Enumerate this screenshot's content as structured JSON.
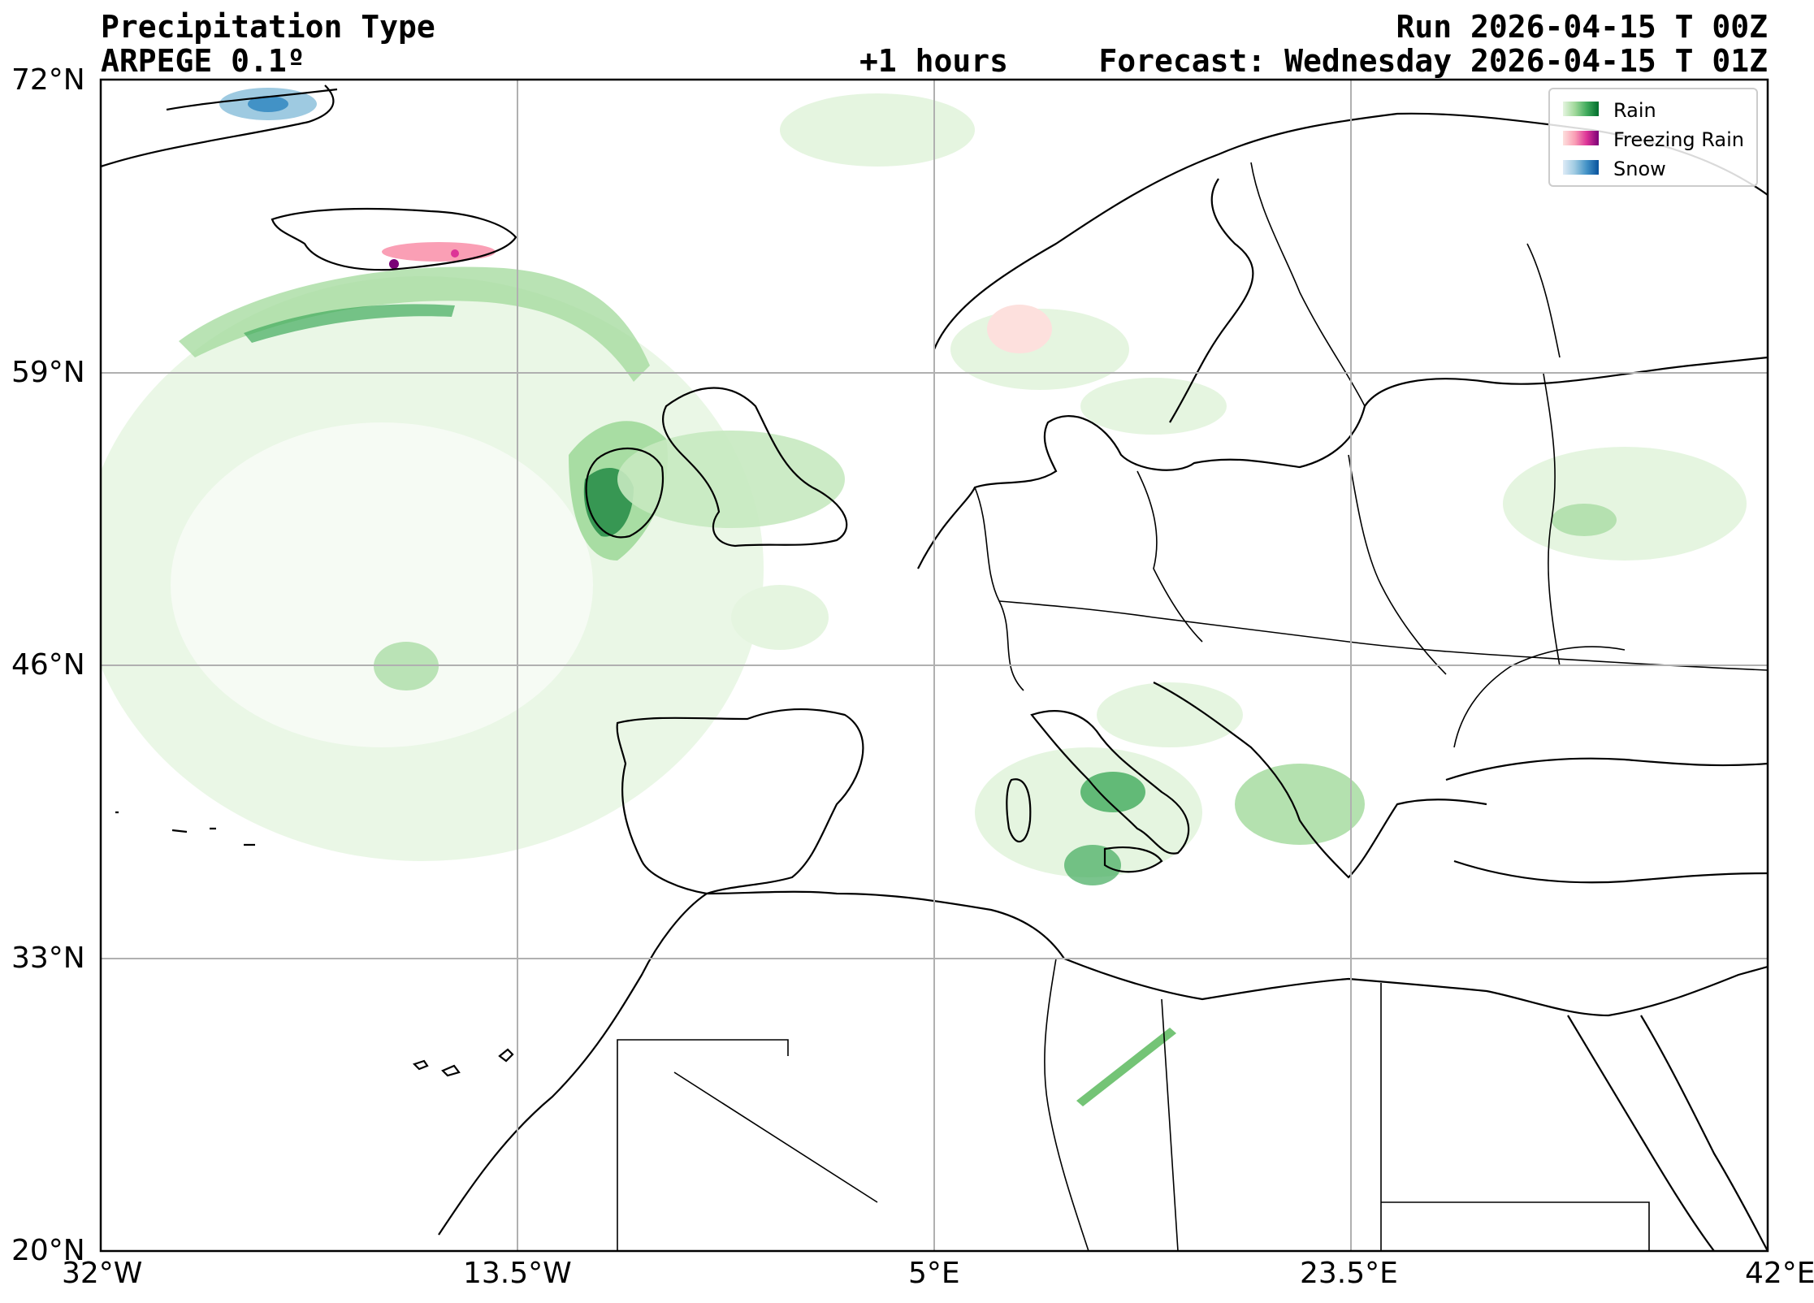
{
  "header": {
    "title": "Precipitation Type",
    "model": "ARPEGE 0.1º",
    "lead": "+1 hours",
    "run": "Run 2026-04-15 T 00Z",
    "forecast": "Forecast: Wednesday 2026-04-15 T 01Z"
  },
  "map": {
    "extent": {
      "lon": [
        -32,
        42
      ],
      "lat": [
        20,
        72
      ]
    },
    "lat_ticks": [
      "72°N",
      "59°N",
      "46°N",
      "33°N",
      "20°N"
    ],
    "lon_ticks": [
      "32°W",
      "13.5°W",
      "5°E",
      "23.5°E",
      "42°E"
    ],
    "grid": true
  },
  "legend": {
    "items": [
      {
        "label": "Rain",
        "colors": [
          "#e5f5e0",
          "#a1d99b",
          "#41ab5d",
          "#006d2c"
        ]
      },
      {
        "label": "Freezing Rain",
        "colors": [
          "#fde0dd",
          "#fa9fb5",
          "#dd3497",
          "#7a0177"
        ]
      },
      {
        "label": "Snow",
        "colors": [
          "#deebf7",
          "#9ecae1",
          "#4292c6",
          "#08519c"
        ]
      }
    ]
  }
}
